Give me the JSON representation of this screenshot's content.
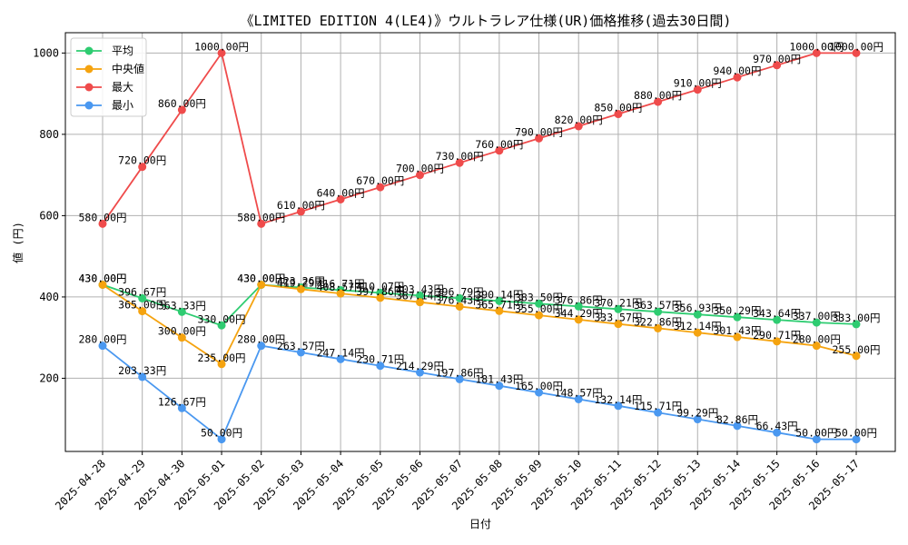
{
  "chart_data": {
    "type": "line",
    "title": "《LIMITED EDITION 4(LE4)》ウルトラレア仕様(UR)価格推移(過去30日間)",
    "xlabel": "日付",
    "ylabel": "値 (円)",
    "ylim": [
      20,
      1050
    ],
    "yticks": [
      200,
      400,
      600,
      800,
      1000
    ],
    "grid": true,
    "legend_position": "top-left",
    "value_suffix": "円",
    "categories": [
      "2025-04-28",
      "2025-04-29",
      "2025-04-30",
      "2025-05-01",
      "2025-05-02",
      "2025-05-03",
      "2025-05-04",
      "2025-05-05",
      "2025-05-06",
      "2025-05-07",
      "2025-05-08",
      "2025-05-09",
      "2025-05-10",
      "2025-05-11",
      "2025-05-12",
      "2025-05-13",
      "2025-05-14",
      "2025-05-15",
      "2025-05-16",
      "2025-05-17"
    ],
    "series": [
      {
        "name": "平均",
        "color": "#2ecc71",
        "values": [
          430.0,
          396.67,
          363.33,
          330.0,
          430.0,
          423.26,
          416.71,
          410.07,
          403.43,
          396.79,
          390.14,
          383.5,
          376.86,
          370.21,
          363.57,
          356.93,
          350.29,
          343.64,
          337.0,
          333.0
        ],
        "labels": [
          "430.00円",
          "396.67円",
          "363.33円",
          "330.00円",
          "430.00円",
          "423.26円",
          "416.71円",
          "410.07円",
          "403.43円",
          "396.79円",
          "390.14円",
          "383.50円",
          "376.86円",
          "370.21円",
          "363.57円",
          "356.93円",
          "350.29円",
          "343.64円",
          "337.00円",
          "333.00円"
        ]
      },
      {
        "name": "中央値",
        "color": "#f5a30f",
        "values": [
          430.0,
          365.0,
          300.0,
          235.0,
          430.0,
          419.29,
          408.57,
          397.86,
          387.14,
          376.43,
          365.71,
          355.0,
          344.29,
          333.57,
          322.86,
          312.14,
          301.43,
          290.71,
          280.0,
          255.0
        ],
        "labels": [
          "430.00円",
          "365.00円",
          "300.00円",
          "235.00円",
          "430.00円",
          "419.29円",
          "408.57円",
          "397.86円",
          "387.14円",
          "376.43円",
          "365.71円",
          "355.00円",
          "344.29円",
          "333.57円",
          "322.86円",
          "312.14円",
          "301.43円",
          "290.71円",
          "280.00円",
          "255.00円"
        ]
      },
      {
        "name": "最大",
        "color": "#ef4b4b",
        "values": [
          580.0,
          720.0,
          860.0,
          1000.0,
          580.0,
          610.0,
          640.0,
          670.0,
          700.0,
          730.0,
          760.0,
          790.0,
          820.0,
          850.0,
          880.0,
          910.0,
          940.0,
          970.0,
          1000.0,
          1000.0
        ],
        "labels": [
          "580.00円",
          "720.00円",
          "860.00円",
          "1000.00円",
          "580.00円",
          "610.00円",
          "640.00円",
          "670.00円",
          "700.00円",
          "730.00円",
          "760.00円",
          "790.00円",
          "820.00円",
          "850.00円",
          "880.00円",
          "910.00円",
          "940.00円",
          "970.00円",
          "1000.00円",
          "1000.00円"
        ]
      },
      {
        "name": "最小",
        "color": "#4a98f0",
        "values": [
          280.0,
          203.33,
          126.67,
          50.0,
          280.0,
          263.57,
          247.14,
          230.71,
          214.29,
          197.86,
          181.43,
          165.0,
          148.57,
          132.14,
          115.71,
          99.29,
          82.86,
          66.43,
          50.0,
          50.0
        ],
        "labels": [
          "280.00円",
          "203.33円",
          "126.67円",
          "50.00円",
          "280.00円",
          "263.57円",
          "247.14円",
          "230.71円",
          "214.29円",
          "197.86円",
          "181.43円",
          "165.00円",
          "148.57円",
          "132.14円",
          "115.71円",
          "99.29円",
          "82.86円",
          "66.43円",
          "50.00円",
          "50.00円"
        ]
      }
    ]
  }
}
